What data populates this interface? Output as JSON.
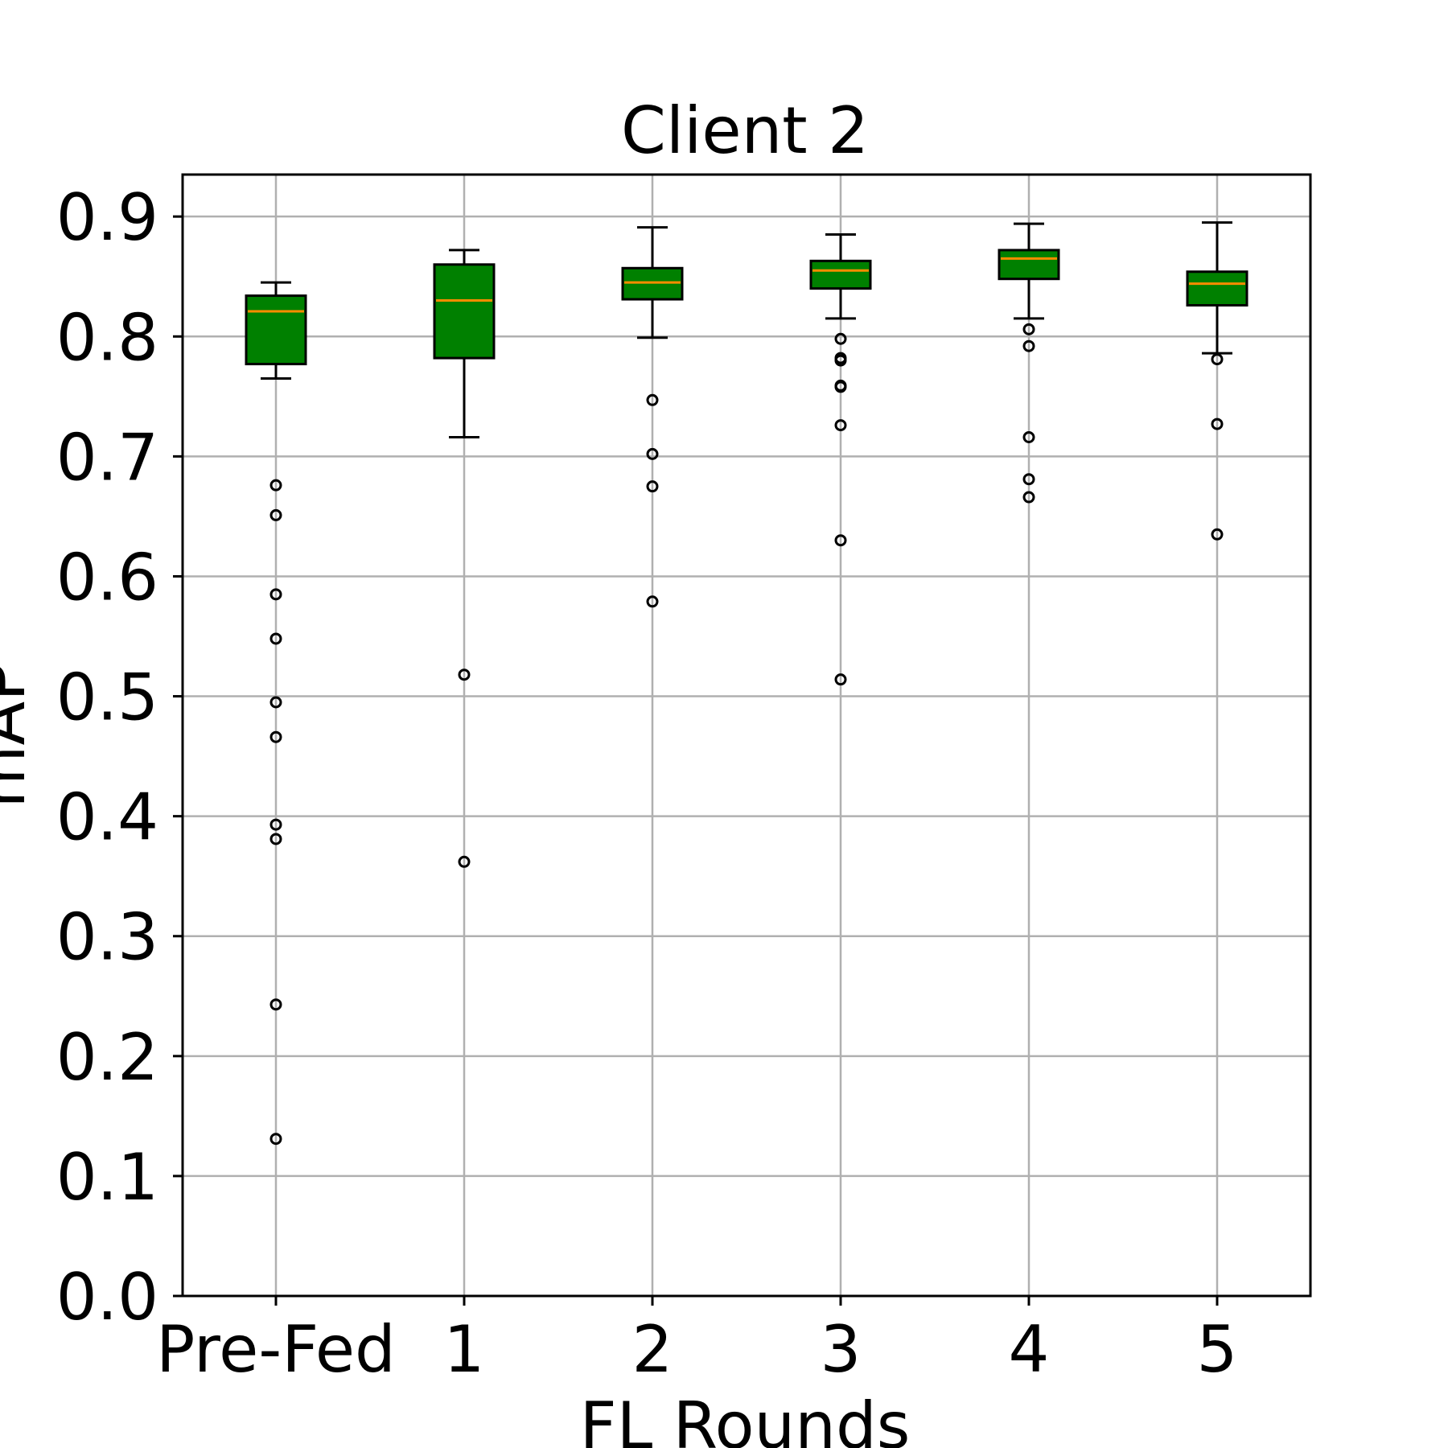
{
  "chart_data": {
    "type": "boxplot",
    "title": "Client 2",
    "xlabel": "FL Rounds",
    "ylabel": "mAP",
    "categories": [
      "Pre-Fed",
      "1",
      "2",
      "3",
      "4",
      "5"
    ],
    "ylim": [
      0.0,
      0.935
    ],
    "yticks": [
      "0.0",
      "0.1",
      "0.2",
      "0.3",
      "0.4",
      "0.5",
      "0.6",
      "0.7",
      "0.8",
      "0.9"
    ],
    "grid": true,
    "box_color": "#008000",
    "median_color": "#ff8c00",
    "boxes": [
      {
        "category": "Pre-Fed",
        "whisker_low": 0.765,
        "q1": 0.777,
        "median": 0.821,
        "q3": 0.834,
        "whisker_high": 0.845,
        "outliers": [
          0.676,
          0.651,
          0.585,
          0.548,
          0.495,
          0.466,
          0.393,
          0.381,
          0.243,
          0.131
        ]
      },
      {
        "category": "1",
        "whisker_low": 0.716,
        "q1": 0.782,
        "median": 0.83,
        "q3": 0.86,
        "whisker_high": 0.872,
        "outliers": [
          0.518,
          0.362
        ]
      },
      {
        "category": "2",
        "whisker_low": 0.799,
        "q1": 0.831,
        "median": 0.845,
        "q3": 0.857,
        "whisker_high": 0.891,
        "outliers": [
          0.747,
          0.702,
          0.675,
          0.579
        ]
      },
      {
        "category": "3",
        "whisker_low": 0.815,
        "q1": 0.84,
        "median": 0.855,
        "q3": 0.863,
        "whisker_high": 0.885,
        "outliers": [
          0.798,
          0.782,
          0.78,
          0.759,
          0.758,
          0.726,
          0.63,
          0.514
        ]
      },
      {
        "category": "4",
        "whisker_low": 0.815,
        "q1": 0.848,
        "median": 0.865,
        "q3": 0.872,
        "whisker_high": 0.894,
        "outliers": [
          0.806,
          0.792,
          0.716,
          0.681,
          0.666
        ]
      },
      {
        "category": "5",
        "whisker_low": 0.786,
        "q1": 0.826,
        "median": 0.844,
        "q3": 0.854,
        "whisker_high": 0.895,
        "outliers": [
          0.781,
          0.727,
          0.635
        ]
      }
    ]
  }
}
